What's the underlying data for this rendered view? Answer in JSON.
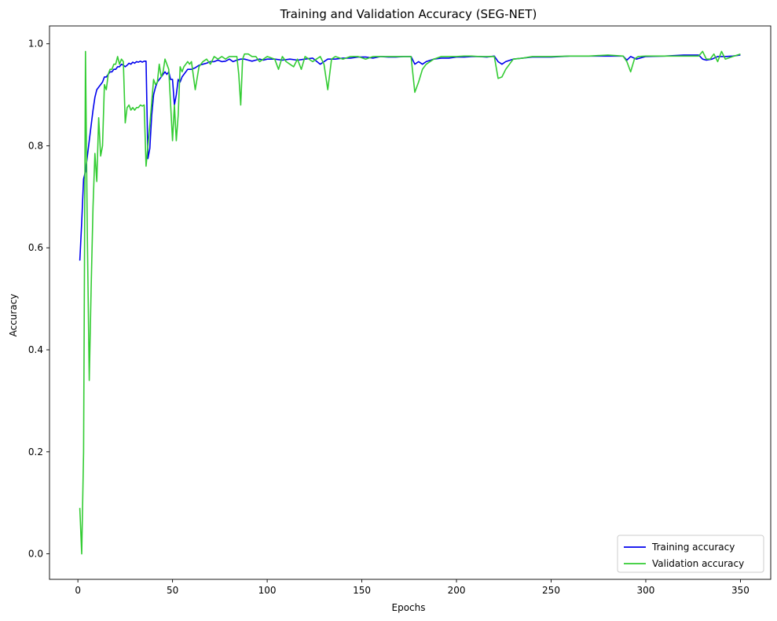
{
  "chart_data": {
    "type": "line",
    "title": "Training and Validation Accuracy (SEG-NET)",
    "xlabel": "Epochs",
    "ylabel": "Accuracy",
    "xlim": [
      -15,
      366
    ],
    "ylim": [
      -0.05,
      1.035
    ],
    "xticks": [
      0,
      50,
      100,
      150,
      200,
      250,
      300,
      350
    ],
    "yticks": [
      0.0,
      0.2,
      0.4,
      0.6,
      0.8,
      1.0
    ],
    "ytick_labels": [
      "0.0",
      "0.2",
      "0.4",
      "0.6",
      "0.8",
      "1.0"
    ],
    "grid": false,
    "legend": "lower-right",
    "series": [
      {
        "name": "Training accuracy",
        "color": "#0000ee",
        "x": [
          1,
          2,
          3,
          4,
          5,
          6,
          7,
          8,
          9,
          10,
          11,
          12,
          13,
          14,
          15,
          16,
          17,
          18,
          19,
          20,
          21,
          22,
          23,
          24,
          25,
          26,
          27,
          28,
          29,
          30,
          31,
          32,
          33,
          34,
          35,
          36,
          37,
          38,
          39,
          40,
          41,
          42,
          43,
          44,
          45,
          46,
          47,
          48,
          49,
          50,
          51,
          52,
          53,
          54,
          55,
          56,
          57,
          58,
          59,
          60,
          62,
          64,
          66,
          68,
          70,
          72,
          74,
          76,
          78,
          80,
          82,
          84,
          86,
          88,
          90,
          92,
          94,
          96,
          98,
          100,
          104,
          108,
          112,
          116,
          120,
          124,
          128,
          132,
          136,
          140,
          144,
          148,
          152,
          156,
          160,
          164,
          168,
          172,
          176,
          178,
          180,
          182,
          184,
          188,
          192,
          196,
          200,
          204,
          208,
          212,
          216,
          220,
          222,
          224,
          226,
          230,
          235,
          240,
          250,
          260,
          270,
          280,
          288,
          290,
          292,
          295,
          300,
          310,
          320,
          328,
          330,
          332,
          335,
          338,
          342,
          346,
          350
        ],
        "values": [
          0.575,
          0.65,
          0.735,
          0.75,
          0.78,
          0.81,
          0.84,
          0.87,
          0.895,
          0.91,
          0.915,
          0.92,
          0.925,
          0.935,
          0.935,
          0.94,
          0.945,
          0.945,
          0.95,
          0.95,
          0.955,
          0.955,
          0.96,
          0.958,
          0.955,
          0.958,
          0.962,
          0.96,
          0.964,
          0.962,
          0.965,
          0.964,
          0.966,
          0.964,
          0.966,
          0.966,
          0.775,
          0.795,
          0.86,
          0.9,
          0.915,
          0.925,
          0.93,
          0.935,
          0.94,
          0.945,
          0.94,
          0.945,
          0.93,
          0.93,
          0.88,
          0.9,
          0.93,
          0.925,
          0.935,
          0.94,
          0.945,
          0.95,
          0.95,
          0.95,
          0.953,
          0.958,
          0.96,
          0.962,
          0.965,
          0.965,
          0.968,
          0.965,
          0.966,
          0.97,
          0.965,
          0.968,
          0.97,
          0.97,
          0.968,
          0.966,
          0.968,
          0.97,
          0.968,
          0.97,
          0.97,
          0.968,
          0.97,
          0.968,
          0.97,
          0.972,
          0.96,
          0.97,
          0.97,
          0.972,
          0.972,
          0.974,
          0.974,
          0.972,
          0.975,
          0.974,
          0.974,
          0.975,
          0.975,
          0.96,
          0.965,
          0.96,
          0.965,
          0.97,
          0.972,
          0.972,
          0.974,
          0.974,
          0.975,
          0.975,
          0.974,
          0.976,
          0.965,
          0.96,
          0.965,
          0.97,
          0.972,
          0.974,
          0.974,
          0.976,
          0.976,
          0.976,
          0.976,
          0.968,
          0.975,
          0.97,
          0.975,
          0.976,
          0.978,
          0.978,
          0.97,
          0.968,
          0.97,
          0.975,
          0.975,
          0.976,
          0.978
        ]
      },
      {
        "name": "Validation accuracy",
        "color": "#33cc33",
        "x": [
          1,
          2,
          3,
          4,
          5,
          6,
          7,
          8,
          9,
          10,
          11,
          12,
          13,
          14,
          15,
          16,
          17,
          18,
          19,
          20,
          21,
          22,
          23,
          24,
          25,
          26,
          27,
          28,
          29,
          30,
          31,
          32,
          33,
          34,
          35,
          36,
          37,
          38,
          39,
          40,
          41,
          42,
          43,
          44,
          45,
          46,
          47,
          48,
          49,
          50,
          51,
          52,
          53,
          54,
          55,
          56,
          57,
          58,
          59,
          60,
          62,
          64,
          66,
          68,
          70,
          72,
          74,
          76,
          78,
          80,
          82,
          84,
          85,
          86,
          87,
          88,
          90,
          92,
          94,
          96,
          98,
          100,
          104,
          106,
          108,
          110,
          112,
          114,
          116,
          118,
          120,
          124,
          128,
          130,
          132,
          134,
          136,
          140,
          144,
          148,
          152,
          156,
          160,
          164,
          168,
          172,
          176,
          178,
          180,
          182,
          184,
          188,
          192,
          196,
          200,
          204,
          208,
          212,
          216,
          220,
          222,
          224,
          226,
          230,
          235,
          240,
          250,
          260,
          270,
          280,
          288,
          290,
          292,
          294,
          296,
          300,
          310,
          320,
          328,
          330,
          332,
          334,
          336,
          338,
          340,
          342,
          346,
          350
        ],
        "values": [
          0.09,
          0.0,
          0.2,
          0.985,
          0.62,
          0.34,
          0.52,
          0.68,
          0.785,
          0.73,
          0.855,
          0.78,
          0.8,
          0.92,
          0.91,
          0.94,
          0.95,
          0.95,
          0.96,
          0.96,
          0.975,
          0.96,
          0.97,
          0.965,
          0.845,
          0.875,
          0.88,
          0.87,
          0.875,
          0.87,
          0.875,
          0.875,
          0.88,
          0.878,
          0.88,
          0.76,
          0.8,
          0.84,
          0.885,
          0.93,
          0.92,
          0.925,
          0.96,
          0.935,
          0.945,
          0.97,
          0.96,
          0.95,
          0.88,
          0.81,
          0.88,
          0.81,
          0.86,
          0.955,
          0.945,
          0.955,
          0.96,
          0.965,
          0.96,
          0.965,
          0.91,
          0.955,
          0.965,
          0.97,
          0.96,
          0.975,
          0.97,
          0.975,
          0.97,
          0.975,
          0.975,
          0.975,
          0.94,
          0.88,
          0.97,
          0.98,
          0.98,
          0.975,
          0.975,
          0.965,
          0.97,
          0.975,
          0.97,
          0.95,
          0.975,
          0.965,
          0.96,
          0.955,
          0.97,
          0.95,
          0.975,
          0.965,
          0.975,
          0.96,
          0.91,
          0.97,
          0.975,
          0.97,
          0.975,
          0.975,
          0.97,
          0.975,
          0.975,
          0.975,
          0.975,
          0.975,
          0.975,
          0.905,
          0.925,
          0.95,
          0.96,
          0.97,
          0.975,
          0.975,
          0.975,
          0.976,
          0.976,
          0.975,
          0.975,
          0.975,
          0.932,
          0.935,
          0.95,
          0.97,
          0.972,
          0.975,
          0.975,
          0.976,
          0.976,
          0.978,
          0.976,
          0.965,
          0.945,
          0.97,
          0.975,
          0.976,
          0.976,
          0.976,
          0.976,
          0.985,
          0.97,
          0.97,
          0.98,
          0.965,
          0.985,
          0.97,
          0.975,
          0.98
        ]
      }
    ]
  }
}
